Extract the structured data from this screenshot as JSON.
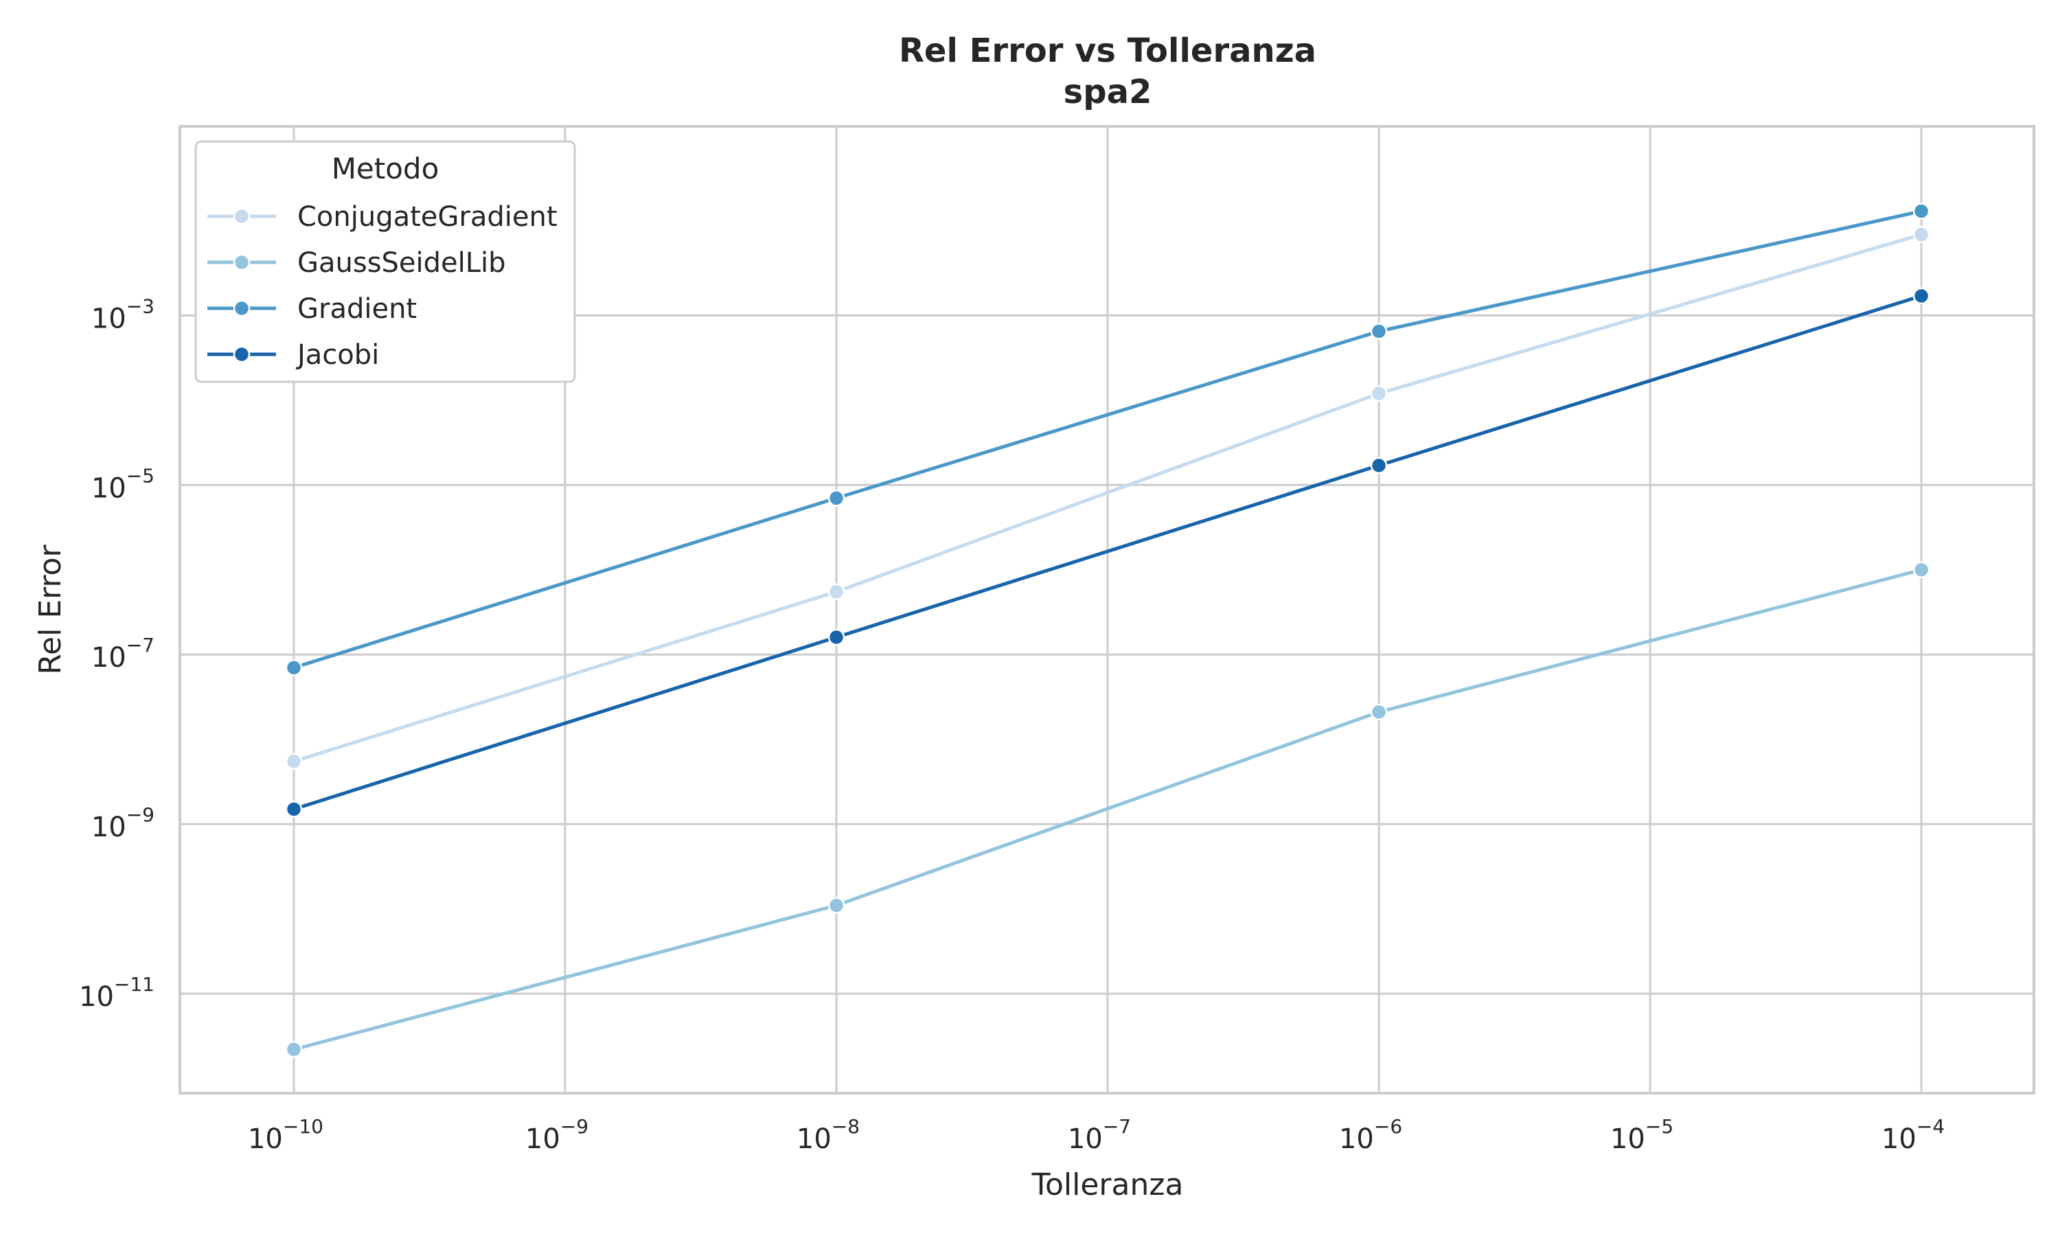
{
  "chart_data": {
    "type": "line",
    "title": "Rel Error vs Tolleranza",
    "subtitle": "spa2",
    "xlabel": "Tolleranza",
    "ylabel": "Rel Error",
    "x_scale": "log",
    "y_scale": "log",
    "x": [
      1e-10,
      1e-08,
      1e-06,
      0.0001
    ],
    "xlim": [
      3.8e-11,
      0.00026
    ],
    "ylim": [
      6.7e-13,
      0.17
    ],
    "x_ticks": [
      {
        "value": 1e-10,
        "base": "10",
        "exp": "−10"
      },
      {
        "value": 1e-09,
        "base": "10",
        "exp": "−9"
      },
      {
        "value": 1e-08,
        "base": "10",
        "exp": "−8"
      },
      {
        "value": 1e-07,
        "base": "10",
        "exp": "−7"
      },
      {
        "value": 1e-06,
        "base": "10",
        "exp": "−6"
      },
      {
        "value": 1e-05,
        "base": "10",
        "exp": "−5"
      },
      {
        "value": 0.0001,
        "base": "10",
        "exp": "−4"
      }
    ],
    "y_ticks": [
      {
        "value": 1e-11,
        "base": "10",
        "exp": "−11"
      },
      {
        "value": 1e-09,
        "base": "10",
        "exp": "−9"
      },
      {
        "value": 1e-07,
        "base": "10",
        "exp": "−7"
      },
      {
        "value": 1e-05,
        "base": "10",
        "exp": "−5"
      },
      {
        "value": 0.001,
        "base": "10",
        "exp": "−3"
      }
    ],
    "grid": true,
    "legend": {
      "title": "Metodo",
      "position": "top-left"
    },
    "series": [
      {
        "name": "ConjugateGradient",
        "color": "#c6dbef",
        "values": [
          5.5e-09,
          5.5e-07,
          0.00012,
          0.009
        ]
      },
      {
        "name": "GaussSeidelLib",
        "color": "#93c4de",
        "values": [
          2.2e-12,
          1.1e-10,
          2.1e-08,
          1e-06
        ]
      },
      {
        "name": "Gradient",
        "color": "#4a98c9",
        "values": [
          7e-08,
          7e-06,
          0.00065,
          0.017
        ]
      },
      {
        "name": "Jacobi",
        "color": "#1764ab",
        "values": [
          1.5e-09,
          1.6e-07,
          1.7e-05,
          0.0017
        ]
      }
    ]
  }
}
